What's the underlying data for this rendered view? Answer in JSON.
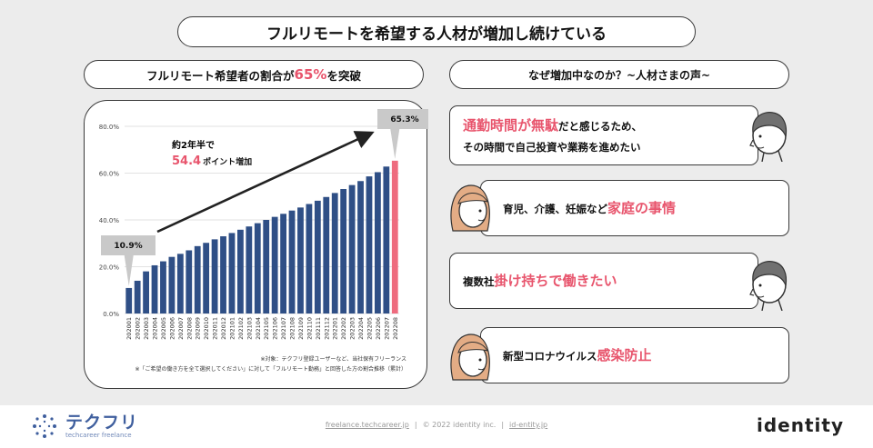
{
  "title": "フルリモートを希望する人材が増加し続けている",
  "left_header": {
    "prefix": "フルリモート希望者の割合が",
    "highlight": "65%",
    "suffix": "を突破"
  },
  "right_header": "なぜ増加中なのか？~人材さまの声~",
  "chart_data": {
    "type": "bar",
    "ylim": [
      0,
      80
    ],
    "y_ticks": [
      "0.0%",
      "20.0%",
      "40.0%",
      "60.0%",
      "80.0%"
    ],
    "categories": [
      "202001",
      "202002",
      "202003",
      "202004",
      "202005",
      "202006",
      "202007",
      "202008",
      "202009",
      "202010",
      "202011",
      "202012",
      "202101",
      "202102",
      "202103",
      "202104",
      "202105",
      "202106",
      "202107",
      "202108",
      "202109",
      "202110",
      "202111",
      "202112",
      "202201",
      "202202",
      "202203",
      "202204",
      "202205",
      "202206",
      "202207",
      "202208"
    ],
    "values": [
      10.9,
      14.0,
      18.0,
      20.6,
      22.3,
      24.2,
      25.5,
      27.0,
      28.8,
      30.2,
      31.7,
      33.0,
      34.4,
      35.8,
      37.2,
      38.6,
      40.0,
      41.3,
      42.6,
      44.0,
      45.3,
      46.8,
      48.2,
      49.8,
      51.5,
      53.2,
      54.9,
      56.6,
      58.6,
      60.4,
      62.8,
      65.3
    ],
    "highlight_index": 31,
    "colors": {
      "bar": "#2f4f86",
      "highlight": "#ee6b7e"
    },
    "callout_start": "10.9%",
    "callout_end": "65.3%",
    "annotation": {
      "line1": "約2年半で",
      "value": "54.4",
      "unit": "ポイント増加"
    },
    "notes": [
      "※対象：テクフリ登録ユーザーなど、当社保有フリーランス",
      "※「ご希望の働き方を全て選択してください」に対して「フルリモート勤務」と回答した方の割合推移（累計）"
    ]
  },
  "quotes": [
    {
      "line1_hl": "通勤時間が無駄",
      "line1_rest": "だと感じるため、",
      "line2": "その時間で自己投資や業務を進めたい",
      "avatar": "male"
    },
    {
      "pre": "育児、介護、妊娠など",
      "hl": "家庭の事情",
      "avatar": "female"
    },
    {
      "pre": "複数社",
      "hl": "掛け持ちで働きたい",
      "avatar": "male"
    },
    {
      "pre": "新型コロナウイルス",
      "hl": "感染防止",
      "avatar": "female"
    }
  ],
  "footer": {
    "brand": "テクフリ",
    "brand_sub": "techcareer freelance",
    "link1": "freelance.techcareer.jp",
    "copyright": "© 2022 identity inc.",
    "link2": "id-entity.jp",
    "right_logo": "identity"
  }
}
